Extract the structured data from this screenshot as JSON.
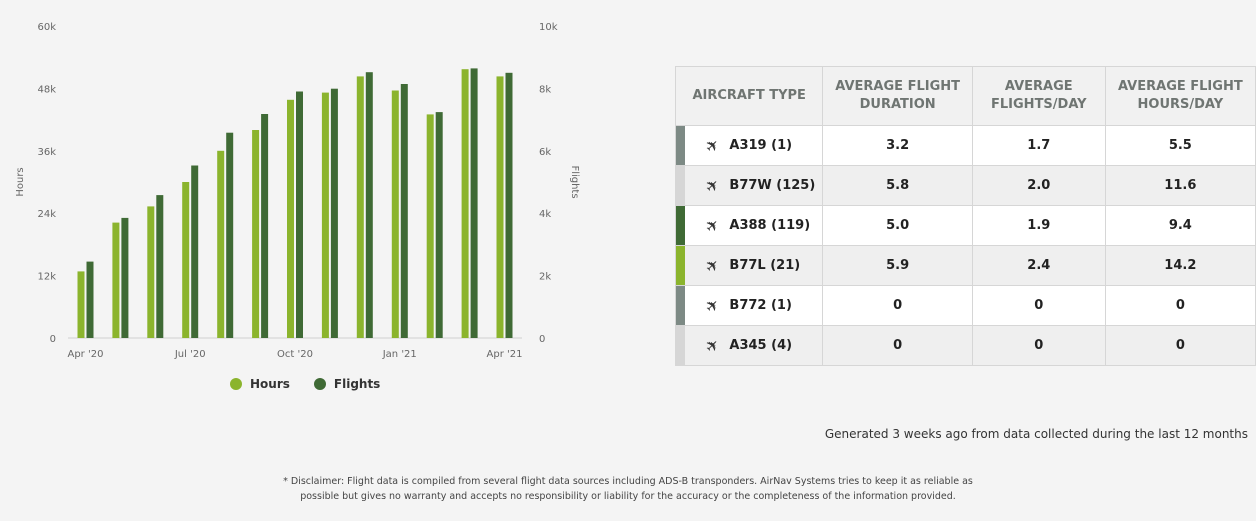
{
  "chart_data": {
    "type": "bar",
    "categories": [
      "Apr '20",
      "May '20",
      "Jun '20",
      "Jul '20",
      "Aug '20",
      "Sep '20",
      "Oct '20",
      "Nov '20",
      "Dec '20",
      "Jan '21",
      "Feb '21",
      "Mar '21",
      "Apr '21"
    ],
    "x_tick_labels": [
      "Apr '20",
      "Jul '20",
      "Oct '20",
      "Jan '21",
      "Apr '21"
    ],
    "series": [
      {
        "name": "Hours",
        "axis": "left",
        "color": "#8bb42d",
        "values": [
          12800,
          22200,
          25300,
          30000,
          36000,
          40000,
          45800,
          47200,
          50300,
          47600,
          43000,
          51700,
          50300
        ]
      },
      {
        "name": "Flights",
        "axis": "right",
        "color": "#3f6a35",
        "values": [
          2450,
          3850,
          4580,
          5530,
          6580,
          7180,
          7900,
          7990,
          8520,
          8140,
          7240,
          8640,
          8500
        ]
      }
    ],
    "ylabel": "Hours",
    "y2label": "Flights",
    "ylim": [
      0,
      60000
    ],
    "y2lim": [
      0,
      10000
    ],
    "y_ticks": [
      "0",
      "12k",
      "24k",
      "36k",
      "48k",
      "60k"
    ],
    "y2_ticks": [
      "0",
      "2k",
      "4k",
      "6k",
      "8k",
      "10k"
    ],
    "grid": false,
    "legend_position": "bottom"
  },
  "table": {
    "headers": {
      "type": "AIRCRAFT TYPE",
      "duration_1": "AVERAGE FLIGHT",
      "duration_2": "DURATION",
      "fpd_1": "AVERAGE",
      "fpd_2": "FLIGHTS/DAY",
      "hpd_1": "AVERAGE FLIGHT",
      "hpd_2": "HOURS/DAY"
    },
    "rows": [
      {
        "type": "A319 (1)",
        "duration": "3.2",
        "flights_day": "1.7",
        "hours_day": "5.5",
        "color": "#7d8a85"
      },
      {
        "type": "B77W (125)",
        "duration": "5.8",
        "flights_day": "2.0",
        "hours_day": "11.6",
        "color": "#d6d6d6"
      },
      {
        "type": "A388 (119)",
        "duration": "5.0",
        "flights_day": "1.9",
        "hours_day": "9.4",
        "color": "#3f6a35"
      },
      {
        "type": "B77L (21)",
        "duration": "5.9",
        "flights_day": "2.4",
        "hours_day": "14.2",
        "color": "#8bb42d"
      },
      {
        "type": "B772 (1)",
        "duration": "0",
        "flights_day": "0",
        "hours_day": "0",
        "color": "#7d8a85"
      },
      {
        "type": "A345 (4)",
        "duration": "0",
        "flights_day": "0",
        "hours_day": "0",
        "color": "#d6d6d6"
      }
    ],
    "icon": "airplane-icon"
  },
  "generated_text": "Generated 3 weeks ago from data collected during the last 12 months",
  "disclaimer_line1": "* Disclaimer: Flight data is compiled from several flight data sources including ADS-B transponders. AirNav Systems tries to keep it as reliable as",
  "disclaimer_line2": "possible but gives no warranty and accepts no responsibility or liability for the accuracy or the completeness of the information provided."
}
